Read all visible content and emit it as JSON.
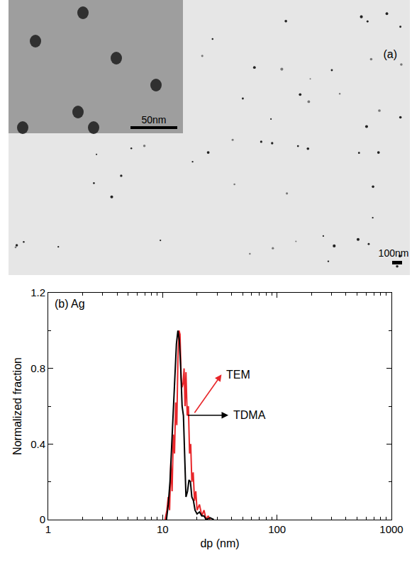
{
  "image_panel": {
    "label": "(a)",
    "scale_bar": "100nm",
    "inset_scale_bar": "50nm"
  },
  "chart_data": {
    "type": "line",
    "title": "(b) Ag",
    "xlabel": "dp (nm)",
    "ylabel": "Normalized fraction",
    "log": "x",
    "grid": false,
    "xlim": [
      1,
      1000
    ],
    "xticks": [
      1,
      10,
      100,
      1000
    ],
    "ylim": [
      0,
      1.2
    ],
    "yticks": [
      0,
      0.4,
      0.8,
      1.2
    ],
    "series": [
      {
        "name": "TEM",
        "color": "#e8262a",
        "line_style": "solid",
        "x": [
          10.5,
          10.9,
          11.2,
          11.5,
          11.8,
          12.1,
          12.4,
          12.7,
          13.0,
          13.3,
          13.6,
          13.9,
          14.2,
          14.5,
          14.8,
          15.1,
          15.4,
          15.7,
          16.0,
          16.4,
          16.8,
          17.2,
          17.6,
          18.0,
          18.5,
          19.0,
          19.5,
          20.0,
          21.0,
          22.0,
          23.0,
          24.0,
          25.0,
          26.0
        ],
        "values": [
          0,
          0.05,
          0.12,
          0.05,
          0.3,
          0.15,
          0.45,
          0.35,
          0.62,
          0.5,
          0.85,
          1.0,
          0.98,
          0.75,
          0.7,
          0.72,
          0.8,
          0.6,
          0.78,
          0.55,
          0.6,
          0.35,
          0.4,
          0.2,
          0.25,
          0.1,
          0.15,
          0.05,
          0.08,
          0.02,
          0.05,
          0,
          0.02,
          0
        ]
      },
      {
        "name": "TDMA",
        "color": "#000000",
        "line_style": "solid",
        "x": [
          10.8,
          11.2,
          11.6,
          12.0,
          12.4,
          12.8,
          13.2,
          13.6,
          14.0,
          14.4,
          14.8,
          15.2,
          15.6,
          16.0,
          16.5,
          17.0,
          17.5,
          18.0,
          18.6,
          19.2,
          20.0,
          21.0,
          22.0,
          23.0,
          24.0,
          26.0,
          28.0
        ],
        "values": [
          0,
          0.08,
          0.2,
          0.4,
          0.6,
          0.8,
          0.93,
          1.0,
          0.95,
          0.8,
          0.6,
          0.55,
          0.3,
          0.12,
          0.15,
          0.21,
          0.2,
          0.12,
          0.1,
          0.05,
          0.03,
          0.04,
          0.02,
          0.02,
          0,
          0.01,
          0
        ]
      }
    ]
  }
}
